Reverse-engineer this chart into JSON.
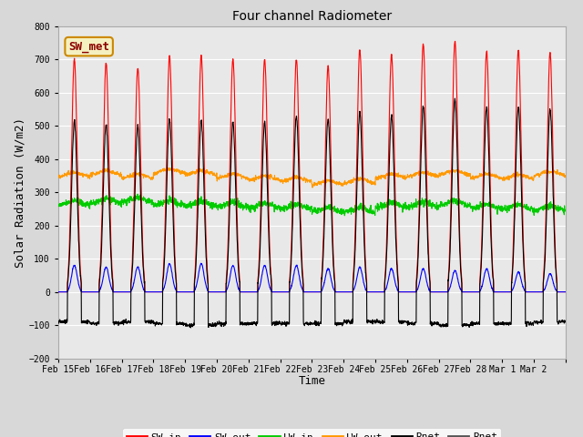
{
  "title": "Four channel Radiometer",
  "xlabel": "Time",
  "ylabel": "Solar Radiation (W/m2)",
  "ylim": [
    -200,
    800
  ],
  "yticks": [
    -200,
    -100,
    0,
    100,
    200,
    300,
    400,
    500,
    600,
    700,
    800
  ],
  "annotation": "SW_met",
  "bg_color": "#e8e8e8",
  "grid_color": "#ffffff",
  "colors": {
    "SW_in": "#ff0000",
    "SW_out": "#0000ff",
    "LW_in": "#00cc00",
    "LW_out": "#ff9900",
    "Rnet_black": "#000000",
    "Rnet_dark": "#555555"
  },
  "n_days": 16,
  "date_labels": [
    "Feb 15",
    "Feb 16",
    "Feb 17",
    "Feb 18",
    "Feb 19",
    "Feb 20",
    "Feb 21",
    "Feb 22",
    "Feb 23",
    "Feb 24",
    "Feb 25",
    "Feb 26",
    "Feb 27",
    "Feb 28",
    "Mar 1",
    "Mar 2"
  ],
  "SW_in_peak": [
    700,
    690,
    675,
    710,
    710,
    700,
    700,
    700,
    680,
    730,
    715,
    745,
    755,
    725,
    730,
    720
  ],
  "SW_out_peak": [
    80,
    75,
    75,
    85,
    85,
    80,
    80,
    80,
    70,
    75,
    70,
    70,
    65,
    70,
    60,
    55
  ],
  "LW_in_base": [
    260,
    265,
    270,
    260,
    258,
    255,
    252,
    250,
    240,
    240,
    255,
    255,
    260,
    250,
    248,
    245
  ],
  "LW_out_base": [
    345,
    350,
    340,
    355,
    350,
    340,
    335,
    330,
    320,
    325,
    340,
    345,
    350,
    340,
    338,
    348
  ],
  "Rnet_peak": [
    515,
    505,
    500,
    520,
    515,
    510,
    510,
    530,
    520,
    540,
    530,
    560,
    580,
    555,
    560,
    550
  ],
  "Rnet_night": [
    -90,
    -95,
    -90,
    -95,
    -100,
    -95,
    -95,
    -95,
    -95,
    -90,
    -90,
    -95,
    -100,
    -95,
    -95,
    -90
  ]
}
